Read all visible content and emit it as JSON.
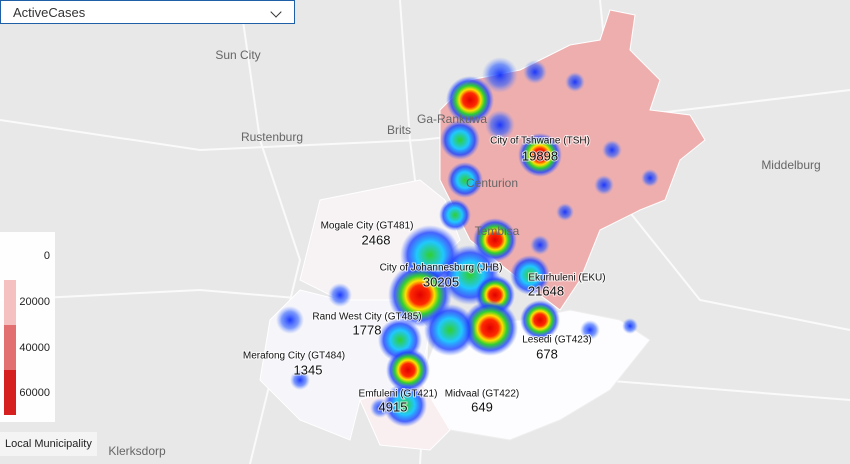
{
  "dropdown": {
    "label": "ActiveCases"
  },
  "places": [
    {
      "name": "Sun City"
    },
    {
      "name": "Rustenburg"
    },
    {
      "name": "Brits"
    },
    {
      "name": "Ga-Rankuwa"
    },
    {
      "name": "Centurion"
    },
    {
      "name": "Tembisa"
    },
    {
      "name": "Middelburg"
    },
    {
      "name": "Klerksdorp"
    }
  ],
  "municipalities": [
    {
      "name": "City of Tshwane (TSH)",
      "active_cases": 19898
    },
    {
      "name": "Mogale City (GT481)",
      "active_cases": 2468
    },
    {
      "name": "City of Johannesburg (JHB)",
      "active_cases": 30205
    },
    {
      "name": "Ekurhuleni (EKU)",
      "active_cases": 21648
    },
    {
      "name": "Rand West City (GT485)",
      "active_cases": 1778
    },
    {
      "name": "Lesedi (GT423)",
      "active_cases": 678
    },
    {
      "name": "Merafong City (GT484)",
      "active_cases": 1345
    },
    {
      "name": "Emfuleni (GT421)",
      "active_cases": 4915
    },
    {
      "name": "Midvaal (GT422)",
      "active_cases": 649
    }
  ],
  "legend": {
    "ticks": [
      0,
      20000,
      40000,
      60000
    ]
  },
  "layer_label": "Local Municipality"
}
